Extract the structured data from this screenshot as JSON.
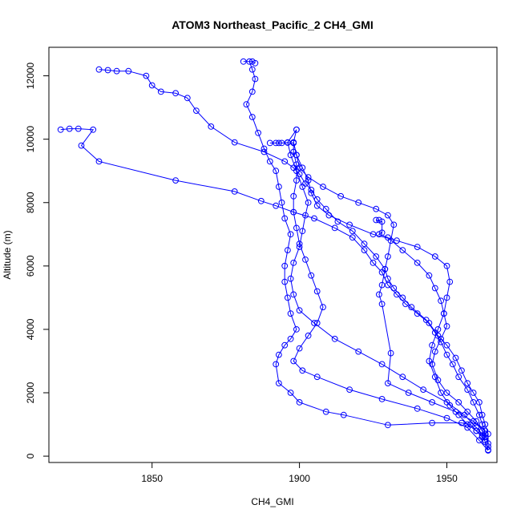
{
  "chart_data": {
    "type": "line",
    "title": "ATOM3 Northeast_Pacific_2 CH4_GMI",
    "xlabel": "CH4_GMI",
    "ylabel": "Altitude (m)",
    "xlim": [
      1815,
      1967
    ],
    "ylim": [
      -200,
      12900
    ],
    "xticks": [
      1850,
      1900,
      1950
    ],
    "xtick_labels": [
      "1850",
      "1900",
      "1950"
    ],
    "yticks": [
      0,
      2000,
      4000,
      6000,
      8000,
      10000,
      12000
    ],
    "ytick_labels": [
      "0",
      "2000",
      "4000",
      "6000",
      "8000",
      "10000",
      "12000"
    ],
    "grid": false,
    "series": [
      {
        "color": "#0000ff",
        "marker": "circle",
        "points": [
          [
            1964,
            200
          ],
          [
            1963,
            450
          ],
          [
            1962,
            650
          ],
          [
            1960,
            800
          ],
          [
            1958,
            1000
          ],
          [
            1955,
            1050
          ],
          [
            1945,
            1050
          ],
          [
            1930,
            980
          ],
          [
            1915,
            1300
          ],
          [
            1909,
            1400
          ],
          [
            1900,
            1700
          ],
          [
            1897,
            2000
          ],
          [
            1893,
            2300
          ],
          [
            1892,
            2900
          ],
          [
            1893,
            3200
          ],
          [
            1895,
            3500
          ],
          [
            1897,
            3700
          ],
          [
            1899,
            4000
          ],
          [
            1897,
            4500
          ],
          [
            1896,
            5000
          ],
          [
            1895,
            5500
          ],
          [
            1895,
            6000
          ],
          [
            1896,
            6500
          ],
          [
            1897,
            7000
          ],
          [
            1895,
            7500
          ],
          [
            1894,
            8000
          ],
          [
            1893,
            8500
          ],
          [
            1892,
            9000
          ],
          [
            1890,
            9300
          ],
          [
            1888,
            9700
          ],
          [
            1886,
            10200
          ],
          [
            1884,
            10700
          ],
          [
            1882,
            11100
          ],
          [
            1884,
            11500
          ],
          [
            1885,
            11900
          ],
          [
            1884,
            12200
          ],
          [
            1883,
            12450
          ],
          [
            1881,
            12450
          ],
          [
            1884,
            12450
          ],
          [
            1885,
            12400
          ]
        ]
      },
      {
        "color": "#0000ff",
        "marker": "circle",
        "points": [
          [
            1832,
            12200
          ],
          [
            1835,
            12180
          ],
          [
            1838,
            12150
          ],
          [
            1842,
            12150
          ],
          [
            1848,
            12000
          ],
          [
            1850,
            11700
          ],
          [
            1853,
            11500
          ],
          [
            1858,
            11450
          ],
          [
            1862,
            11300
          ],
          [
            1865,
            10900
          ],
          [
            1870,
            10400
          ],
          [
            1878,
            9900
          ],
          [
            1888,
            9600
          ],
          [
            1895,
            9300
          ],
          [
            1898,
            9100
          ],
          [
            1900,
            8900
          ],
          [
            1902,
            8600
          ],
          [
            1904,
            8400
          ],
          [
            1906,
            8100
          ],
          [
            1909,
            7800
          ],
          [
            1913,
            7400
          ],
          [
            1918,
            7100
          ],
          [
            1922,
            6700
          ],
          [
            1926,
            6300
          ],
          [
            1929,
            5900
          ],
          [
            1930,
            5600
          ],
          [
            1932,
            5300
          ],
          [
            1935,
            5000
          ],
          [
            1938,
            4700
          ],
          [
            1943,
            4300
          ],
          [
            1946,
            3900
          ],
          [
            1948,
            3600
          ],
          [
            1950,
            3200
          ],
          [
            1952,
            2900
          ],
          [
            1954,
            2500
          ],
          [
            1957,
            2100
          ],
          [
            1959,
            1700
          ],
          [
            1961,
            1300
          ],
          [
            1962,
            1000
          ],
          [
            1963,
            700
          ],
          [
            1964,
            400
          ]
        ]
      },
      {
        "color": "#0000ff",
        "marker": "circle",
        "points": [
          [
            1819,
            10300
          ],
          [
            1822,
            10330
          ],
          [
            1825,
            10330
          ],
          [
            1830,
            10300
          ],
          [
            1826,
            9800
          ],
          [
            1832,
            9300
          ],
          [
            1858,
            8700
          ],
          [
            1878,
            8350
          ],
          [
            1887,
            8050
          ],
          [
            1892,
            7900
          ],
          [
            1898,
            7700
          ],
          [
            1905,
            7500
          ],
          [
            1912,
            7200
          ],
          [
            1918,
            6900
          ],
          [
            1922,
            6500
          ],
          [
            1925,
            6100
          ],
          [
            1928,
            5800
          ],
          [
            1930,
            5400
          ],
          [
            1933,
            5100
          ],
          [
            1936,
            4800
          ],
          [
            1940,
            4500
          ],
          [
            1944,
            4200
          ],
          [
            1947,
            3800
          ],
          [
            1950,
            3500
          ],
          [
            1953,
            3100
          ],
          [
            1955,
            2700
          ],
          [
            1957,
            2300
          ],
          [
            1959,
            2000
          ],
          [
            1961,
            1700
          ],
          [
            1962,
            1300
          ],
          [
            1963,
            1000
          ],
          [
            1964,
            700
          ],
          [
            1964,
            300
          ]
        ]
      },
      {
        "color": "#0000ff",
        "marker": "circle",
        "points": [
          [
            1964,
            180
          ],
          [
            1961,
            500
          ],
          [
            1957,
            900
          ],
          [
            1950,
            1200
          ],
          [
            1940,
            1500
          ],
          [
            1928,
            1800
          ],
          [
            1917,
            2100
          ],
          [
            1906,
            2500
          ],
          [
            1901,
            2700
          ],
          [
            1898,
            3000
          ],
          [
            1900,
            3400
          ],
          [
            1903,
            3800
          ],
          [
            1906,
            4200
          ],
          [
            1908,
            4700
          ],
          [
            1906,
            5200
          ],
          [
            1904,
            5700
          ],
          [
            1902,
            6200
          ],
          [
            1900,
            6700
          ],
          [
            1899,
            7200
          ],
          [
            1898,
            7700
          ],
          [
            1898,
            8200
          ],
          [
            1899,
            8700
          ],
          [
            1899,
            9200
          ],
          [
            1898,
            9600
          ],
          [
            1898,
            9880
          ],
          [
            1896,
            9890
          ],
          [
            1894,
            9880
          ],
          [
            1892,
            9880
          ],
          [
            1890,
            9880
          ],
          [
            1893,
            9880
          ]
        ]
      },
      {
        "color": "#0000ff",
        "marker": "circle",
        "points": [
          [
            1899,
            10300
          ],
          [
            1898,
            9900
          ],
          [
            1899,
            9500
          ],
          [
            1901,
            9100
          ],
          [
            1903,
            8700
          ],
          [
            1904,
            8300
          ],
          [
            1906,
            7900
          ],
          [
            1910,
            7600
          ],
          [
            1917,
            7300
          ],
          [
            1925,
            7000
          ],
          [
            1933,
            6800
          ],
          [
            1940,
            6600
          ],
          [
            1946,
            6300
          ],
          [
            1950,
            6000
          ],
          [
            1951,
            5500
          ],
          [
            1950,
            5000
          ],
          [
            1949,
            4500
          ],
          [
            1947,
            4000
          ],
          [
            1945,
            3500
          ],
          [
            1944,
            3000
          ],
          [
            1946,
            2500
          ],
          [
            1948,
            2000
          ],
          [
            1951,
            1600
          ],
          [
            1954,
            1300
          ],
          [
            1957,
            1000
          ],
          [
            1960,
            800
          ],
          [
            1962,
            600
          ]
        ]
      },
      {
        "color": "#0000ff",
        "marker": "circle",
        "points": [
          [
            1963,
            600
          ],
          [
            1960,
            900
          ],
          [
            1956,
            1300
          ],
          [
            1950,
            1700
          ],
          [
            1942,
            2100
          ],
          [
            1935,
            2500
          ],
          [
            1928,
            2900
          ],
          [
            1920,
            3300
          ],
          [
            1912,
            3700
          ],
          [
            1905,
            4200
          ],
          [
            1900,
            4600
          ],
          [
            1898,
            5100
          ],
          [
            1897,
            5600
          ],
          [
            1898,
            6100
          ],
          [
            1900,
            6600
          ],
          [
            1901,
            7100
          ],
          [
            1902,
            7600
          ],
          [
            1903,
            8000
          ],
          [
            1901,
            8500
          ],
          [
            1899,
            9000
          ],
          [
            1897,
            9500
          ],
          [
            1896,
            9900
          ],
          [
            1899,
            10300
          ]
        ]
      },
      {
        "color": "#0000ff",
        "marker": "circle",
        "points": [
          [
            1927,
            7450
          ],
          [
            1926,
            7450
          ],
          [
            1928,
            7400
          ],
          [
            1928,
            7050
          ],
          [
            1927,
            7000
          ],
          [
            1930,
            6900
          ],
          [
            1935,
            6500
          ],
          [
            1940,
            6100
          ],
          [
            1944,
            5700
          ],
          [
            1946,
            5300
          ],
          [
            1948,
            4900
          ],
          [
            1949,
            4500
          ],
          [
            1950,
            4100
          ],
          [
            1948,
            3700
          ],
          [
            1946,
            3300
          ],
          [
            1945,
            2900
          ],
          [
            1947,
            2400
          ],
          [
            1950,
            2000
          ],
          [
            1954,
            1700
          ],
          [
            1957,
            1400
          ],
          [
            1960,
            1100
          ],
          [
            1962,
            800
          ],
          [
            1963,
            500
          ]
        ]
      },
      {
        "color": "#0000ff",
        "marker": "circle",
        "points": [
          [
            1963,
            800
          ],
          [
            1959,
            1100
          ],
          [
            1953,
            1400
          ],
          [
            1945,
            1700
          ],
          [
            1937,
            2000
          ],
          [
            1930,
            2300
          ],
          [
            1931,
            3250
          ],
          [
            1928,
            4800
          ],
          [
            1927,
            5100
          ],
          [
            1928,
            5400
          ],
          [
            1929,
            5900
          ],
          [
            1930,
            6300
          ],
          [
            1931,
            6800
          ],
          [
            1932,
            7300
          ],
          [
            1930,
            7600
          ],
          [
            1926,
            7800
          ],
          [
            1920,
            8000
          ],
          [
            1914,
            8200
          ],
          [
            1908,
            8500
          ],
          [
            1903,
            8800
          ],
          [
            1900,
            9100
          ],
          [
            1899,
            9500
          ],
          [
            1898,
            9900
          ]
        ]
      }
    ]
  }
}
